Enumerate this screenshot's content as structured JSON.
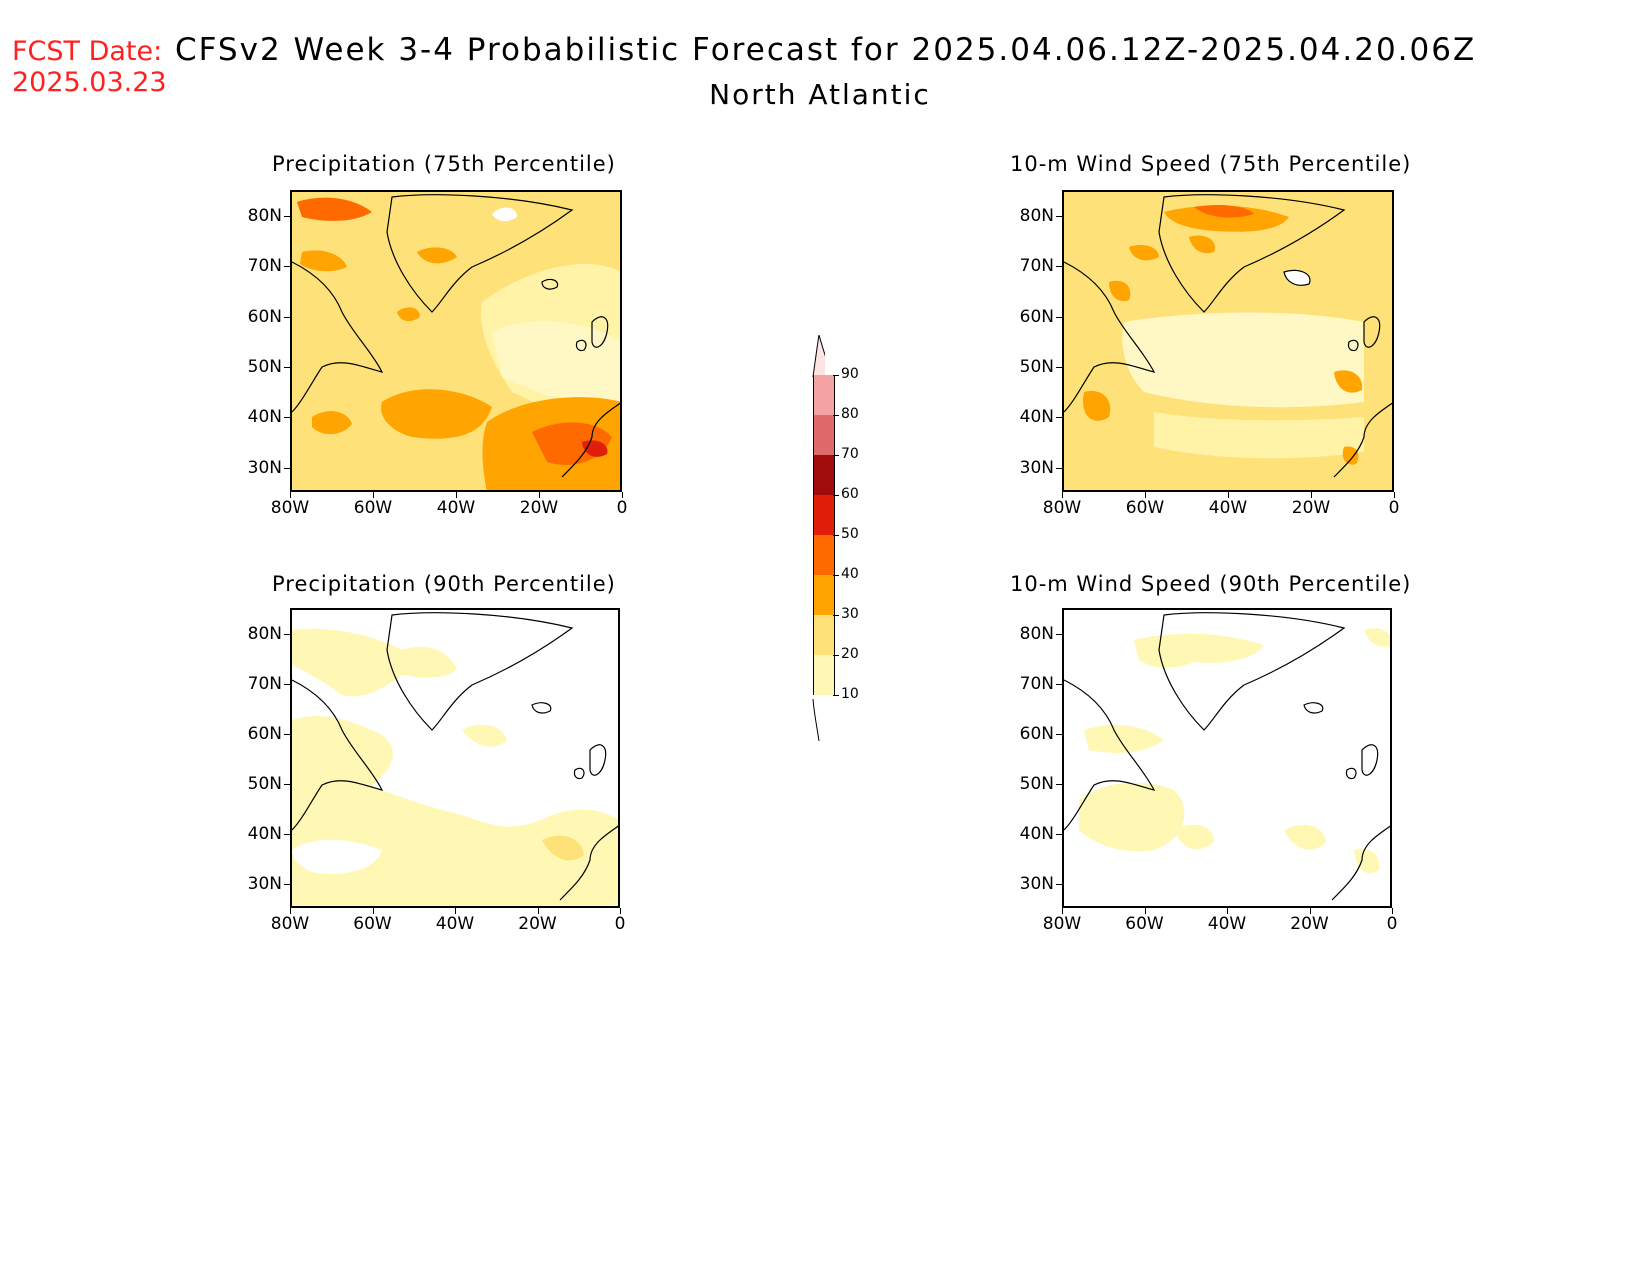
{
  "header": {
    "fcst_label": "FCST Date:",
    "fcst_date": "2025.03.23",
    "title": "CFSv2 Week 3-4 Probabilistic Forecast for 2025.04.06.12Z-2025.04.20.06Z",
    "region": "North Atlantic"
  },
  "panels": [
    {
      "title": "Precipitation (75th Percentile)"
    },
    {
      "title": "10-m Wind Speed (75th Percentile)"
    },
    {
      "title": "Precipitation (90th Percentile)"
    },
    {
      "title": "10-m Wind Speed (90th Percentile)"
    }
  ],
  "axes": {
    "lat_labels": [
      "80N",
      "70N",
      "60N",
      "50N",
      "40N",
      "30N"
    ],
    "lon_labels": [
      "80W",
      "60W",
      "40W",
      "20W",
      "0"
    ]
  },
  "colorbar": {
    "levels": [
      "90",
      "80",
      "70",
      "60",
      "50",
      "40",
      "30",
      "20",
      "10"
    ],
    "colors": [
      "#fde3e3",
      "#f4a3a3",
      "#e06a6a",
      "#a00b0b",
      "#e01e0a",
      "#ff6a00",
      "#ffa400",
      "#ffe17a",
      "#fff8b4"
    ]
  }
}
